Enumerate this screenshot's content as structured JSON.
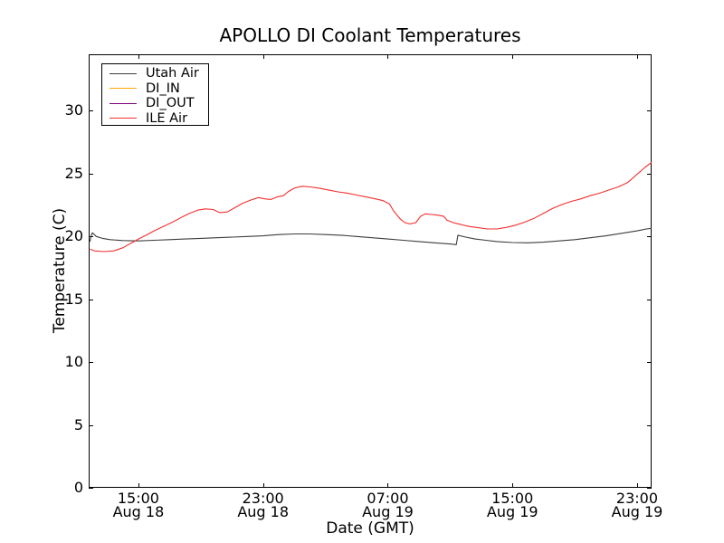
{
  "chart_data": {
    "type": "line",
    "title": "APOLLO DI Coolant Temperatures",
    "xlabel": "Date (GMT)",
    "ylabel": "Temperature (C)",
    "x_unit": "hours since Aug 18 00:00 GMT",
    "xlim": [
      11.81,
      47.93
    ],
    "ylim": [
      0,
      34.5
    ],
    "grid": false,
    "legend_position": "upper left",
    "yticks": [
      0,
      5,
      10,
      15,
      20,
      25,
      30
    ],
    "xticks": [
      {
        "t": 15,
        "time": "15:00",
        "date": "Aug 18"
      },
      {
        "t": 23,
        "time": "23:00",
        "date": "Aug 18"
      },
      {
        "t": 31,
        "time": "07:00",
        "date": "Aug 19"
      },
      {
        "t": 39,
        "time": "15:00",
        "date": "Aug 19"
      },
      {
        "t": 47,
        "time": "23:00",
        "date": "Aug 19"
      }
    ],
    "series": [
      {
        "name": "Utah Air",
        "color": "#3d3d3d",
        "points": [
          [
            11.9,
            19.6
          ],
          [
            11.95,
            20.0
          ],
          [
            12.05,
            20.3
          ],
          [
            12.3,
            20.0
          ],
          [
            12.7,
            19.85
          ],
          [
            13.2,
            19.75
          ],
          [
            14.0,
            19.68
          ],
          [
            15.0,
            19.65
          ],
          [
            16.0,
            19.7
          ],
          [
            17.0,
            19.75
          ],
          [
            18.0,
            19.8
          ],
          [
            19.0,
            19.85
          ],
          [
            20.0,
            19.9
          ],
          [
            21.0,
            19.95
          ],
          [
            22.0,
            20.0
          ],
          [
            23.0,
            20.05
          ],
          [
            24.0,
            20.15
          ],
          [
            25.0,
            20.2
          ],
          [
            26.0,
            20.2
          ],
          [
            27.0,
            20.15
          ],
          [
            28.0,
            20.1
          ],
          [
            29.0,
            20.0
          ],
          [
            30.0,
            19.9
          ],
          [
            31.0,
            19.8
          ],
          [
            32.0,
            19.7
          ],
          [
            33.0,
            19.6
          ],
          [
            34.0,
            19.5
          ],
          [
            35.0,
            19.4
          ],
          [
            35.4,
            19.35
          ],
          [
            35.5,
            20.1
          ],
          [
            36.0,
            19.95
          ],
          [
            36.6,
            19.8
          ],
          [
            37.3,
            19.7
          ],
          [
            38.0,
            19.6
          ],
          [
            39.0,
            19.52
          ],
          [
            40.0,
            19.5
          ],
          [
            41.0,
            19.55
          ],
          [
            42.0,
            19.65
          ],
          [
            43.0,
            19.75
          ],
          [
            44.0,
            19.9
          ],
          [
            45.0,
            20.05
          ],
          [
            46.0,
            20.25
          ],
          [
            47.0,
            20.45
          ],
          [
            47.6,
            20.6
          ],
          [
            47.93,
            20.65
          ]
        ]
      },
      {
        "name": "DI_IN",
        "color": "#ffa500",
        "points": []
      },
      {
        "name": "DI_OUT",
        "color": "#800080",
        "points": []
      },
      {
        "name": "ILE Air",
        "color": "#f23030",
        "points": [
          [
            11.9,
            19.0
          ],
          [
            12.2,
            18.85
          ],
          [
            12.8,
            18.8
          ],
          [
            13.4,
            18.85
          ],
          [
            14.0,
            19.1
          ],
          [
            14.5,
            19.45
          ],
          [
            15.0,
            19.8
          ],
          [
            15.5,
            20.1
          ],
          [
            16.0,
            20.45
          ],
          [
            16.6,
            20.8
          ],
          [
            17.2,
            21.15
          ],
          [
            17.8,
            21.55
          ],
          [
            18.3,
            21.85
          ],
          [
            18.8,
            22.1
          ],
          [
            19.3,
            22.2
          ],
          [
            19.8,
            22.15
          ],
          [
            20.2,
            21.9
          ],
          [
            20.7,
            21.95
          ],
          [
            21.2,
            22.3
          ],
          [
            21.7,
            22.65
          ],
          [
            22.2,
            22.9
          ],
          [
            22.7,
            23.1
          ],
          [
            23.1,
            23.0
          ],
          [
            23.5,
            22.95
          ],
          [
            23.9,
            23.15
          ],
          [
            24.3,
            23.25
          ],
          [
            24.6,
            23.55
          ],
          [
            25.0,
            23.85
          ],
          [
            25.5,
            24.0
          ],
          [
            26.0,
            23.95
          ],
          [
            26.6,
            23.85
          ],
          [
            27.2,
            23.7
          ],
          [
            27.8,
            23.55
          ],
          [
            28.4,
            23.45
          ],
          [
            29.0,
            23.3
          ],
          [
            29.6,
            23.15
          ],
          [
            30.2,
            23.0
          ],
          [
            30.7,
            22.85
          ],
          [
            31.1,
            22.6
          ],
          [
            31.4,
            22.0
          ],
          [
            31.8,
            21.4
          ],
          [
            32.1,
            21.1
          ],
          [
            32.4,
            21.0
          ],
          [
            32.8,
            21.1
          ],
          [
            33.1,
            21.6
          ],
          [
            33.4,
            21.8
          ],
          [
            33.8,
            21.75
          ],
          [
            34.2,
            21.7
          ],
          [
            34.6,
            21.6
          ],
          [
            34.8,
            21.3
          ],
          [
            35.2,
            21.1
          ],
          [
            35.7,
            20.95
          ],
          [
            36.2,
            20.8
          ],
          [
            36.8,
            20.7
          ],
          [
            37.4,
            20.6
          ],
          [
            38.0,
            20.6
          ],
          [
            38.6,
            20.72
          ],
          [
            39.2,
            20.9
          ],
          [
            39.8,
            21.15
          ],
          [
            40.4,
            21.45
          ],
          [
            41.0,
            21.85
          ],
          [
            41.6,
            22.25
          ],
          [
            42.2,
            22.55
          ],
          [
            42.8,
            22.8
          ],
          [
            43.4,
            23.0
          ],
          [
            44.0,
            23.25
          ],
          [
            44.6,
            23.45
          ],
          [
            45.2,
            23.7
          ],
          [
            45.8,
            23.95
          ],
          [
            46.4,
            24.3
          ],
          [
            47.0,
            24.95
          ],
          [
            47.5,
            25.5
          ],
          [
            47.93,
            25.9
          ]
        ]
      }
    ]
  },
  "layout_colors": {
    "frame": "#000000",
    "background": "#ffffff"
  }
}
